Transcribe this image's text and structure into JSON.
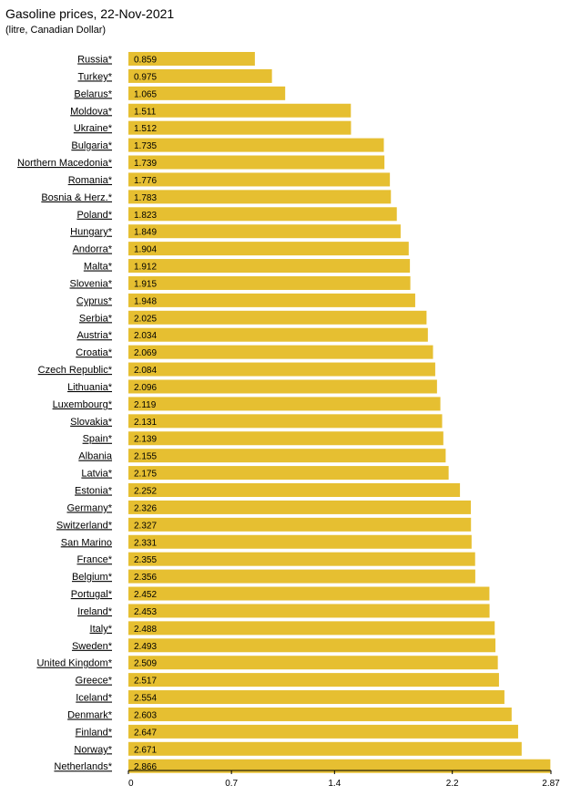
{
  "chart_data": {
    "type": "bar",
    "orientation": "horizontal",
    "title": "Gasoline prices, 22-Nov-2021",
    "subtitle": "(litre, Canadian Dollar)",
    "xlabel": "",
    "ylabel": "",
    "xlim": [
      0,
      2.87
    ],
    "xticks": [
      0,
      0.7,
      1.4,
      2.2,
      2.87
    ],
    "xtick_labels": [
      "0",
      "0.7",
      "1.4",
      "2.2",
      "2.87"
    ],
    "grid": false,
    "bar_color": "#e6bf31",
    "categories": [
      "Russia*",
      "Turkey*",
      "Belarus*",
      "Moldova*",
      "Ukraine*",
      "Bulgaria*",
      "Northern Macedonia*",
      "Romania*",
      "Bosnia & Herz.*",
      "Poland*",
      "Hungary*",
      "Andorra*",
      "Malta*",
      "Slovenia*",
      "Cyprus*",
      "Serbia*",
      "Austria*",
      "Croatia*",
      "Czech Republic*",
      "Lithuania*",
      "Luxembourg*",
      "Slovakia*",
      "Spain*",
      "Albania",
      "Latvia*",
      "Estonia*",
      "Germany*",
      "Switzerland*",
      "San Marino",
      "France*",
      "Belgium*",
      "Portugal*",
      "Ireland*",
      "Italy*",
      "Sweden*",
      "United Kingdom*",
      "Greece*",
      "Iceland*",
      "Denmark*",
      "Finland*",
      "Norway*",
      "Netherlands*"
    ],
    "values": [
      0.859,
      0.975,
      1.065,
      1.511,
      1.512,
      1.735,
      1.739,
      1.776,
      1.783,
      1.823,
      1.849,
      1.904,
      1.912,
      1.915,
      1.948,
      2.025,
      2.034,
      2.069,
      2.084,
      2.096,
      2.119,
      2.131,
      2.139,
      2.155,
      2.175,
      2.252,
      2.326,
      2.327,
      2.331,
      2.355,
      2.356,
      2.452,
      2.453,
      2.488,
      2.493,
      2.509,
      2.517,
      2.554,
      2.603,
      2.647,
      2.671,
      2.866
    ],
    "value_labels": [
      "0.859",
      "0.975",
      "1.065",
      "1.511",
      "1.512",
      "1.735",
      "1.739",
      "1.776",
      "1.783",
      "1.823",
      "1.849",
      "1.904",
      "1.912",
      "1.915",
      "1.948",
      "2.025",
      "2.034",
      "2.069",
      "2.084",
      "2.096",
      "2.119",
      "2.131",
      "2.139",
      "2.155",
      "2.175",
      "2.252",
      "2.326",
      "2.327",
      "2.331",
      "2.355",
      "2.356",
      "2.452",
      "2.453",
      "2.488",
      "2.493",
      "2.509",
      "2.517",
      "2.554",
      "2.603",
      "2.647",
      "2.671",
      "2.866"
    ]
  }
}
